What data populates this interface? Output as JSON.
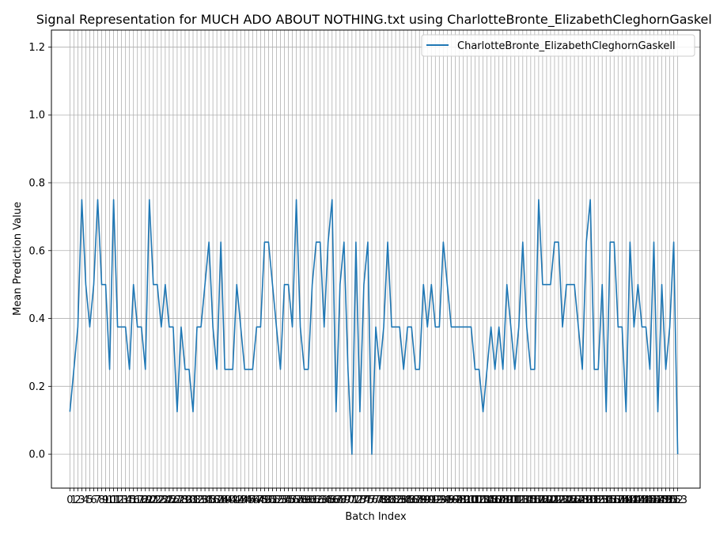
{
  "chart_data": {
    "type": "line",
    "title": "Signal Representation for MUCH ADO ABOUT NOTHING.txt using CharlotteBronte_ElizabethCleghornGaskell",
    "xlabel": "Batch Index",
    "ylabel": "Mean Prediction Value",
    "xlim": [
      -4.65,
      158.65
    ],
    "ylim": [
      -0.1,
      1.25
    ],
    "grid": true,
    "legend_position": "top-right",
    "x_ticks_first": 0,
    "x_ticks_last": 153,
    "y_ticks": [
      0.0,
      0.2,
      0.4,
      0.6,
      0.8,
      1.0,
      1.2
    ],
    "series": [
      {
        "name": "CharlotteBronte_ElizabethCleghornGaskell",
        "color": "#1f77b4",
        "values": [
          0.125,
          0.25,
          0.375,
          0.75,
          0.5,
          0.375,
          0.5,
          0.75,
          0.5,
          0.5,
          0.25,
          0.75,
          0.375,
          0.375,
          0.375,
          0.25,
          0.5,
          0.375,
          0.375,
          0.25,
          0.75,
          0.5,
          0.5,
          0.375,
          0.5,
          0.375,
          0.375,
          0.125,
          0.375,
          0.25,
          0.25,
          0.125,
          0.375,
          0.375,
          0.5,
          0.625,
          0.375,
          0.25,
          0.625,
          0.25,
          0.25,
          0.25,
          0.5,
          0.375,
          0.25,
          0.25,
          0.25,
          0.375,
          0.375,
          0.625,
          0.625,
          0.5,
          0.375,
          0.25,
          0.5,
          0.5,
          0.375,
          0.75,
          0.375,
          0.25,
          0.25,
          0.5,
          0.625,
          0.625,
          0.375,
          0.625,
          0.75,
          0.125,
          0.5,
          0.625,
          0.25,
          0.0,
          0.625,
          0.125,
          0.5,
          0.625,
          0.0,
          0.375,
          0.25,
          0.375,
          0.625,
          0.375,
          0.375,
          0.375,
          0.25,
          0.375,
          0.375,
          0.25,
          0.25,
          0.5,
          0.375,
          0.5,
          0.375,
          0.375,
          0.625,
          0.5,
          0.375,
          0.375,
          0.375,
          0.375,
          0.375,
          0.375,
          0.25,
          0.25,
          0.125,
          0.25,
          0.375,
          0.25,
          0.375,
          0.25,
          0.5,
          0.375,
          0.25,
          0.375,
          0.625,
          0.375,
          0.25,
          0.25,
          0.75,
          0.5,
          0.5,
          0.5,
          0.625,
          0.625,
          0.375,
          0.5,
          0.5,
          0.5,
          0.375,
          0.25,
          0.625,
          0.75,
          0.25,
          0.25,
          0.5,
          0.125,
          0.625,
          0.625,
          0.375,
          0.375,
          0.125,
          0.625,
          0.375,
          0.5,
          0.375,
          0.375,
          0.25,
          0.625,
          0.125,
          0.5,
          0.25,
          0.375,
          0.625,
          0.0
        ]
      }
    ]
  }
}
